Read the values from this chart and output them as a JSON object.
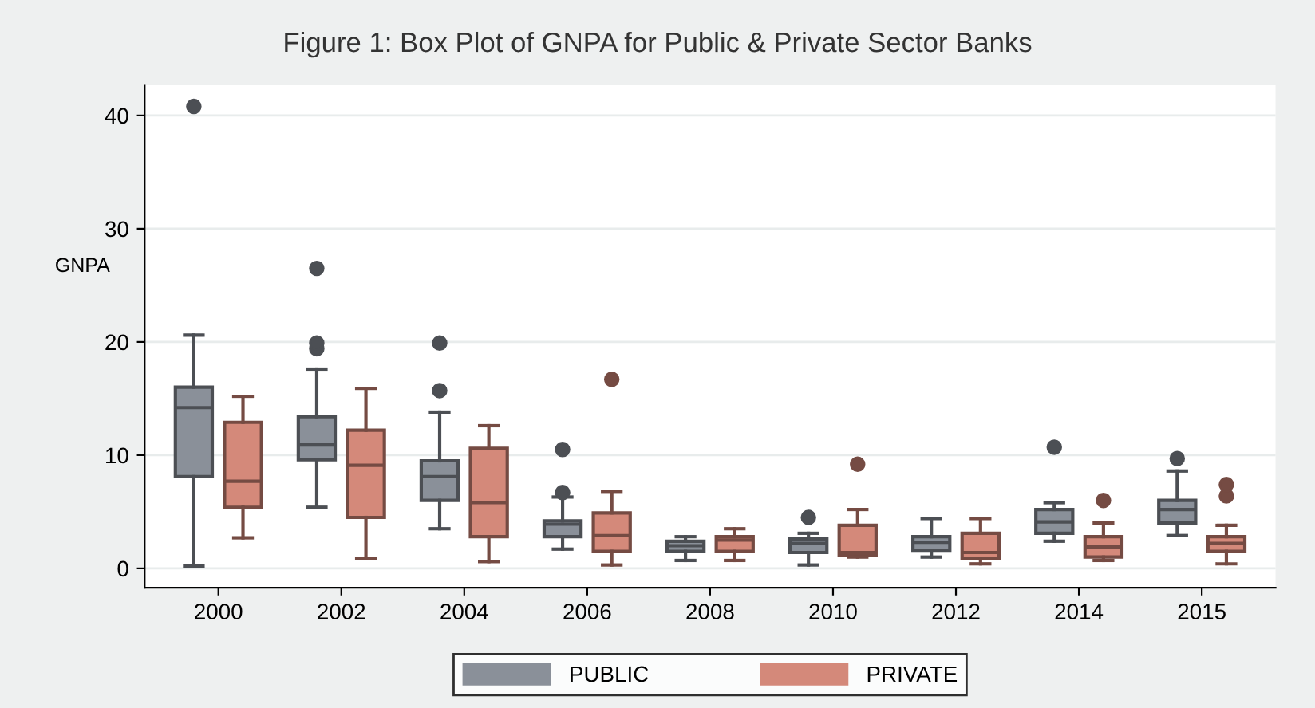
{
  "chart_data": {
    "type": "box",
    "title": "Figure 1: Box Plot of GNPA for Public & Private Sector Banks",
    "ylabel": "GNPA",
    "categories": [
      "2000",
      "2002",
      "2004",
      "2006",
      "2008",
      "2010",
      "2012",
      "2014",
      "2015"
    ],
    "ylim": [
      -1.7,
      42.7
    ],
    "yticks": [
      0,
      10,
      20,
      30,
      40
    ],
    "grid": "y",
    "legend": "bottom",
    "series": [
      {
        "name": "PUBLIC",
        "color": "#8a9099",
        "boxes": [
          {
            "low": 0.2,
            "q1": 8.1,
            "median": 14.2,
            "q3": 16.0,
            "high": 20.6,
            "outliers": [
              40.8
            ]
          },
          {
            "low": 5.4,
            "q1": 9.6,
            "median": 10.9,
            "q3": 13.4,
            "high": 17.6,
            "outliers": [
              19.4,
              19.9,
              26.5
            ]
          },
          {
            "low": 3.5,
            "q1": 6.0,
            "median": 8.1,
            "q3": 9.5,
            "high": 13.8,
            "outliers": [
              15.7,
              19.9
            ]
          },
          {
            "low": 1.7,
            "q1": 2.8,
            "median": 3.9,
            "q3": 4.2,
            "high": 6.3,
            "outliers": [
              6.7,
              10.5
            ]
          },
          {
            "low": 0.7,
            "q1": 1.5,
            "median": 2.0,
            "q3": 2.4,
            "high": 2.8
          },
          {
            "low": 0.3,
            "q1": 1.4,
            "median": 2.2,
            "q3": 2.6,
            "high": 3.1,
            "outliers": [
              4.5
            ]
          },
          {
            "low": 1.0,
            "q1": 1.6,
            "median": 2.3,
            "q3": 2.8,
            "high": 4.4
          },
          {
            "low": 2.4,
            "q1": 3.1,
            "median": 4.1,
            "q3": 5.2,
            "high": 5.8,
            "outliers": [
              10.7
            ]
          },
          {
            "low": 2.9,
            "q1": 4.0,
            "median": 5.2,
            "q3": 6.0,
            "high": 8.6,
            "outliers": [
              9.7
            ]
          }
        ]
      },
      {
        "name": "PRIVATE",
        "color": "#d4897a",
        "boxes": [
          {
            "low": 2.7,
            "q1": 5.4,
            "median": 7.7,
            "q3": 12.9,
            "high": 15.2
          },
          {
            "low": 0.9,
            "q1": 4.5,
            "median": 9.1,
            "q3": 12.2,
            "high": 15.9
          },
          {
            "low": 0.6,
            "q1": 2.8,
            "median": 5.8,
            "q3": 10.6,
            "high": 12.6
          },
          {
            "low": 0.3,
            "q1": 1.5,
            "median": 2.9,
            "q3": 4.9,
            "high": 6.8,
            "outliers": [
              16.7
            ]
          },
          {
            "low": 0.7,
            "q1": 1.5,
            "median": 2.5,
            "q3": 2.8,
            "high": 3.5
          },
          {
            "low": 1.0,
            "q1": 1.2,
            "median": 1.4,
            "q3": 3.8,
            "high": 5.2,
            "outliers": [
              9.2
            ]
          },
          {
            "low": 0.4,
            "q1": 0.9,
            "median": 1.4,
            "q3": 3.1,
            "high": 4.4
          },
          {
            "low": 0.7,
            "q1": 1.0,
            "median": 1.9,
            "q3": 2.8,
            "high": 4.0,
            "outliers": [
              6.0
            ]
          },
          {
            "low": 0.4,
            "q1": 1.5,
            "median": 2.2,
            "q3": 2.8,
            "high": 3.8,
            "outliers": [
              6.4,
              7.4
            ]
          }
        ]
      }
    ]
  }
}
